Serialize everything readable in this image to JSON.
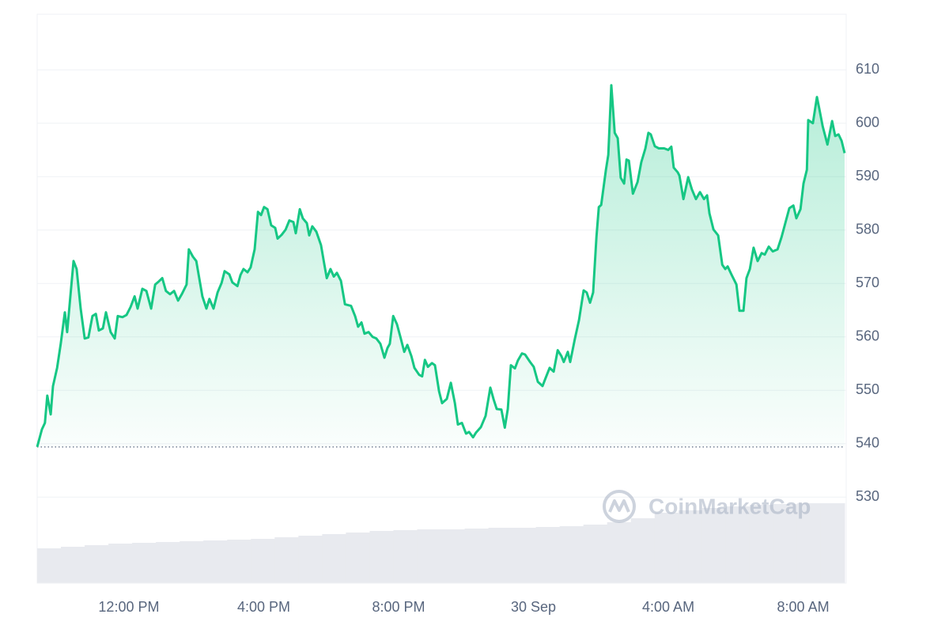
{
  "chart_data": {
    "type": "line",
    "color": "#16c784",
    "watermark": "CoinMarketCap",
    "baseline": 539.4,
    "xlim": [
      9.28,
      33.23
    ],
    "ylim": [
      513.9,
      620.4
    ],
    "yticks": [
      530,
      540,
      550,
      560,
      570,
      580,
      590,
      600,
      610
    ],
    "xticks": [
      {
        "value": 12,
        "label": "12:00 PM"
      },
      {
        "value": 16,
        "label": "4:00 PM"
      },
      {
        "value": 20,
        "label": "8:00 PM"
      },
      {
        "value": 24,
        "label": "30 Sep"
      },
      {
        "value": 28,
        "label": "4:00 AM"
      },
      {
        "value": 32,
        "label": "8:00 AM"
      }
    ],
    "grid": true,
    "x": [
      9.28,
      9.42,
      9.51,
      9.58,
      9.68,
      9.75,
      9.87,
      9.98,
      10.1,
      10.17,
      10.36,
      10.45,
      10.57,
      10.69,
      10.8,
      10.92,
      11.02,
      11.11,
      11.23,
      11.32,
      11.46,
      11.58,
      11.67,
      11.81,
      11.93,
      12.05,
      12.17,
      12.26,
      12.4,
      12.52,
      12.66,
      12.78,
      12.89,
      12.99,
      13.1,
      13.22,
      13.34,
      13.46,
      13.57,
      13.71,
      13.78,
      13.9,
      14.0,
      14.18,
      14.3,
      14.39,
      14.51,
      14.63,
      14.75,
      14.84,
      14.98,
      15.07,
      15.22,
      15.31,
      15.4,
      15.52,
      15.61,
      15.73,
      15.83,
      15.92,
      16.01,
      16.11,
      16.22,
      16.34,
      16.41,
      16.53,
      16.65,
      16.76,
      16.88,
      16.95,
      17.07,
      17.16,
      17.28,
      17.35,
      17.44,
      17.56,
      17.7,
      17.8,
      17.87,
      17.98,
      18.08,
      18.17,
      18.29,
      18.41,
      18.59,
      18.71,
      18.8,
      18.9,
      18.99,
      19.11,
      19.23,
      19.34,
      19.46,
      19.58,
      19.67,
      19.74,
      19.84,
      19.95,
      20.05,
      20.17,
      20.26,
      20.38,
      20.47,
      20.61,
      20.7,
      20.78,
      20.87,
      20.99,
      21.08,
      21.2,
      21.29,
      21.43,
      21.55,
      21.67,
      21.76,
      21.88,
      22.0,
      22.09,
      22.21,
      22.3,
      22.44,
      22.58,
      22.72,
      22.82,
      22.91,
      23.05,
      23.15,
      23.24,
      23.33,
      23.45,
      23.54,
      23.66,
      23.75,
      23.9,
      24.01,
      24.13,
      24.27,
      24.36,
      24.48,
      24.6,
      24.72,
      24.83,
      24.9,
      25.02,
      25.09,
      25.23,
      25.35,
      25.49,
      25.58,
      25.68,
      25.77,
      25.87,
      25.94,
      26.01,
      26.15,
      26.22,
      26.31,
      26.41,
      26.5,
      26.59,
      26.69,
      26.76,
      26.83,
      26.95,
      27.09,
      27.2,
      27.32,
      27.41,
      27.48,
      27.6,
      27.72,
      27.88,
      28.0,
      28.09,
      28.16,
      28.28,
      28.33,
      28.45,
      28.59,
      28.7,
      28.82,
      28.94,
      29.06,
      29.15,
      29.22,
      29.34,
      29.48,
      29.6,
      29.69,
      29.76,
      29.88,
      30.02,
      30.11,
      30.23,
      30.32,
      30.42,
      30.53,
      30.65,
      30.77,
      30.86,
      30.98,
      31.1,
      31.24,
      31.36,
      31.47,
      31.59,
      31.71,
      31.8,
      31.92,
      32.01,
      32.11,
      32.15,
      32.29,
      32.41,
      32.48,
      32.58,
      32.72,
      32.86,
      32.95,
      33.05,
      33.14,
      33.23
    ],
    "values": [
      539.4,
      542.7,
      543.9,
      549.0,
      545.5,
      550.8,
      554.2,
      558.7,
      564.6,
      560.9,
      574.2,
      572.7,
      565.3,
      559.7,
      559.9,
      563.9,
      564.3,
      561.2,
      561.6,
      564.6,
      560.9,
      559.7,
      563.9,
      563.7,
      564.1,
      565.6,
      567.6,
      565.3,
      569.0,
      568.6,
      565.3,
      569.8,
      570.4,
      571.0,
      568.6,
      568.0,
      568.6,
      566.8,
      568.0,
      569.8,
      576.4,
      575.0,
      574.2,
      567.6,
      565.3,
      567.1,
      565.3,
      568.3,
      570.1,
      572.3,
      571.7,
      570.2,
      569.5,
      571.6,
      572.7,
      572.1,
      573.0,
      576.4,
      583.4,
      582.8,
      584.3,
      583.9,
      580.9,
      580.4,
      578.4,
      579.1,
      580.1,
      581.8,
      581.5,
      579.4,
      583.9,
      582.2,
      581.3,
      579.0,
      580.7,
      579.7,
      577.2,
      573.5,
      571.0,
      572.7,
      571.3,
      572.0,
      570.5,
      566.1,
      565.8,
      563.9,
      561.9,
      562.7,
      560.6,
      560.9,
      560.0,
      559.7,
      558.7,
      556.1,
      557.9,
      558.7,
      563.9,
      562.4,
      560.1,
      557.2,
      558.5,
      556.4,
      554.2,
      552.9,
      552.6,
      555.7,
      554.4,
      555.1,
      554.7,
      549.8,
      547.6,
      548.4,
      551.4,
      547.6,
      543.6,
      543.9,
      541.9,
      542.2,
      541.2,
      542.1,
      543.1,
      545.2,
      550.5,
      548.3,
      546.5,
      546.4,
      543.0,
      546.5,
      554.7,
      554.1,
      555.6,
      556.9,
      556.7,
      555.3,
      554.4,
      551.6,
      550.8,
      552.3,
      554.2,
      553.5,
      557.5,
      556.4,
      555.3,
      557.2,
      555.3,
      559.7,
      563.1,
      568.7,
      568.3,
      566.4,
      568.3,
      578.7,
      584.3,
      584.7,
      591.3,
      594.1,
      607.1,
      598.2,
      597.2,
      589.8,
      588.7,
      593.2,
      593.0,
      586.8,
      589.0,
      592.7,
      595.3,
      598.2,
      597.9,
      595.7,
      595.3,
      595.3,
      595.0,
      595.6,
      591.7,
      590.8,
      590.2,
      585.8,
      589.9,
      587.6,
      585.8,
      587.1,
      585.8,
      586.5,
      583.1,
      580.1,
      579.0,
      573.5,
      572.7,
      573.2,
      571.6,
      569.8,
      564.9,
      564.9,
      571.0,
      572.7,
      576.7,
      574.2,
      575.7,
      575.4,
      576.9,
      576.0,
      576.4,
      578.7,
      581.3,
      584.1,
      584.6,
      582.2,
      583.9,
      588.7,
      591.3,
      600.6,
      600.0,
      604.9,
      602.7,
      599.4,
      596.0,
      600.4,
      597.6,
      597.9,
      596.7,
      594.4
    ],
    "volume_color": "#e8eaef",
    "volume_values": [
      44,
      46,
      48,
      50,
      51,
      52,
      53,
      54,
      55,
      56,
      58,
      60,
      62,
      64,
      66,
      67,
      68,
      68,
      69,
      70,
      70,
      71,
      72,
      74,
      77,
      82,
      89,
      92,
      95,
      97,
      99,
      100,
      101,
      101
    ]
  }
}
